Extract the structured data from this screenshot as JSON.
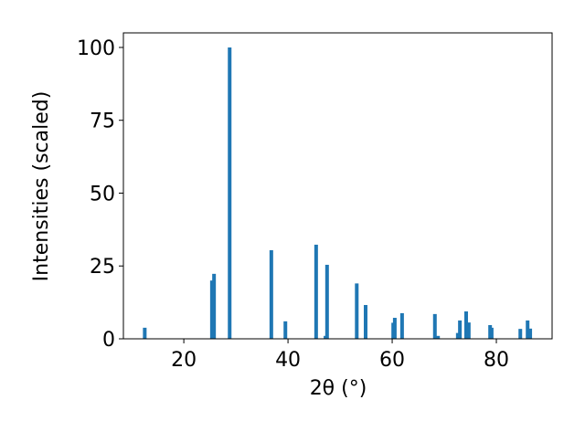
{
  "chart_data": {
    "type": "bar",
    "xlabel": "2θ (°)",
    "ylabel": "Intensities (scaled)",
    "x": [
      12.5,
      25.4,
      25.8,
      28.8,
      36.8,
      39.5,
      45.4,
      47.2,
      47.5,
      53.2,
      54.9,
      60.2,
      60.5,
      61.9,
      68.2,
      68.8,
      72.6,
      73.0,
      74.2,
      74.7,
      78.8,
      79.1,
      84.6,
      86.0,
      86.5
    ],
    "values": [
      3.8,
      20,
      22.3,
      100,
      30.4,
      6,
      32.3,
      1,
      25.4,
      19,
      11.6,
      5.5,
      7.2,
      8.8,
      8.5,
      1,
      2,
      6.3,
      9.4,
      5.6,
      4.7,
      3.8,
      3.4,
      6.3,
      3.5
    ],
    "color": "#1f77b4",
    "xlim": [
      8.4,
      90.7
    ],
    "xticks": [
      20,
      40,
      60,
      80
    ],
    "ylim": [
      0,
      105
    ],
    "yticks": [
      0,
      25,
      50,
      75,
      100
    ],
    "grid": false
  }
}
